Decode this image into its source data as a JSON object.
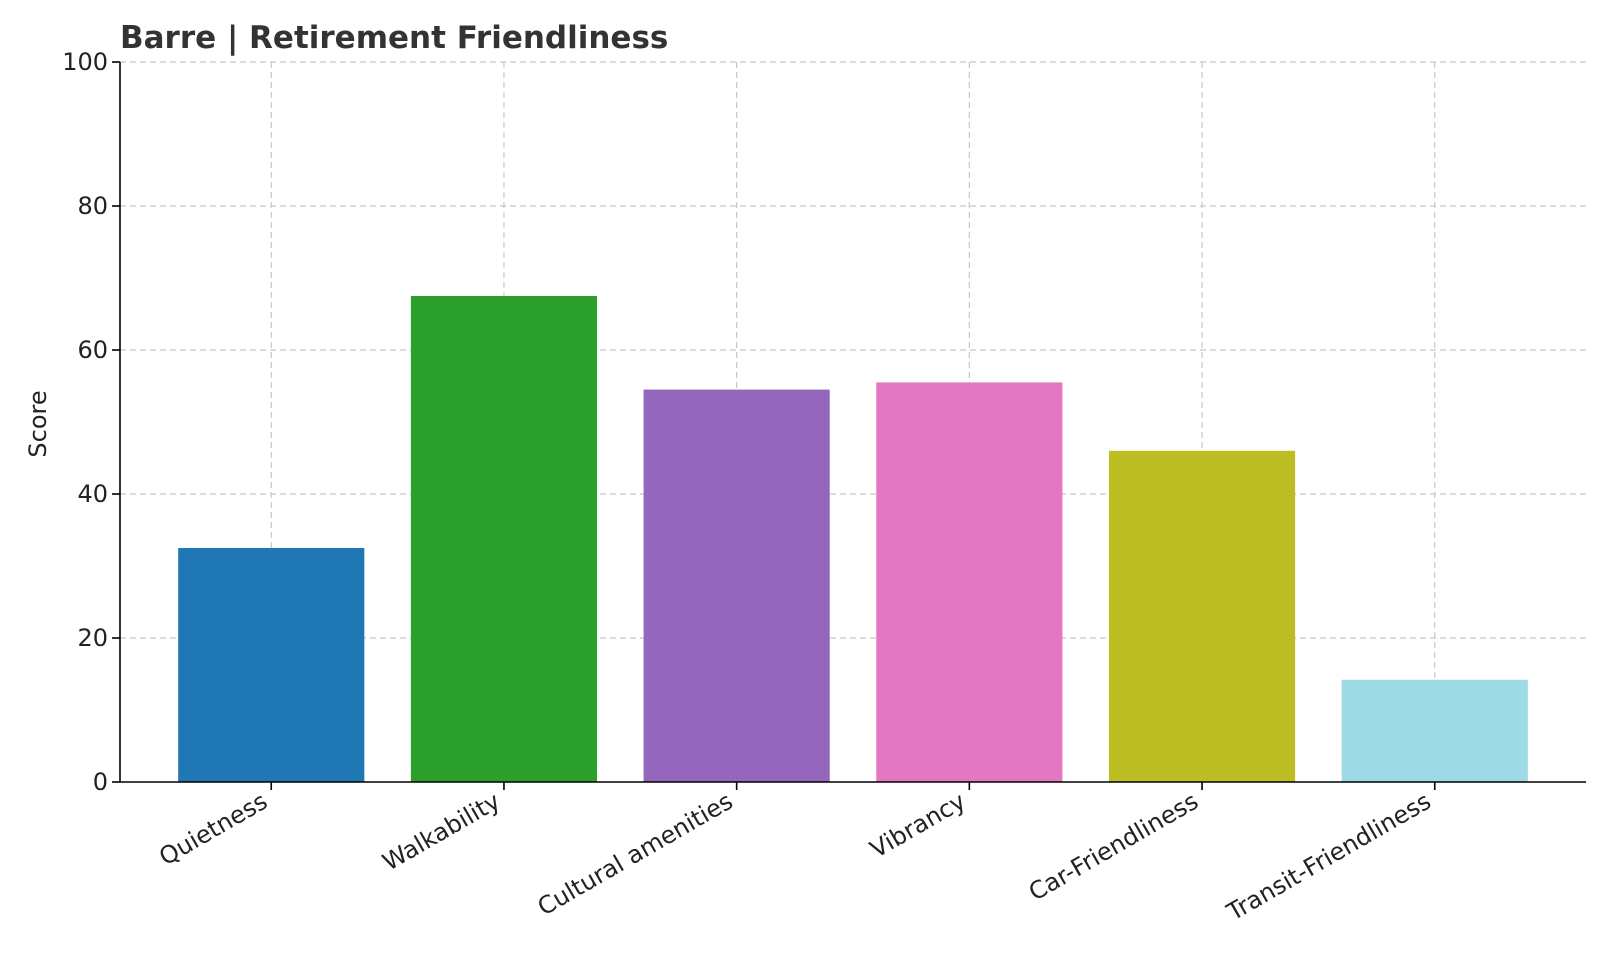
{
  "chart_data": {
    "type": "bar",
    "title": "Barre | Retirement Friendliness",
    "xlabel": "",
    "ylabel": "Score",
    "ylim": [
      0,
      100
    ],
    "yticks": [
      0,
      20,
      40,
      60,
      80,
      100
    ],
    "grid": true,
    "categories": [
      "Quietness",
      "Walkability",
      "Cultural amenities",
      "Vibrancy",
      "Car-Friendliness",
      "Transit-Friendliness"
    ],
    "values": [
      32.5,
      67.5,
      54.5,
      55.5,
      46.0,
      14.2
    ],
    "colors": [
      "#1f77b4",
      "#2ca02c",
      "#9467bd",
      "#e377c2",
      "#bcbd22",
      "#9edae5"
    ]
  }
}
